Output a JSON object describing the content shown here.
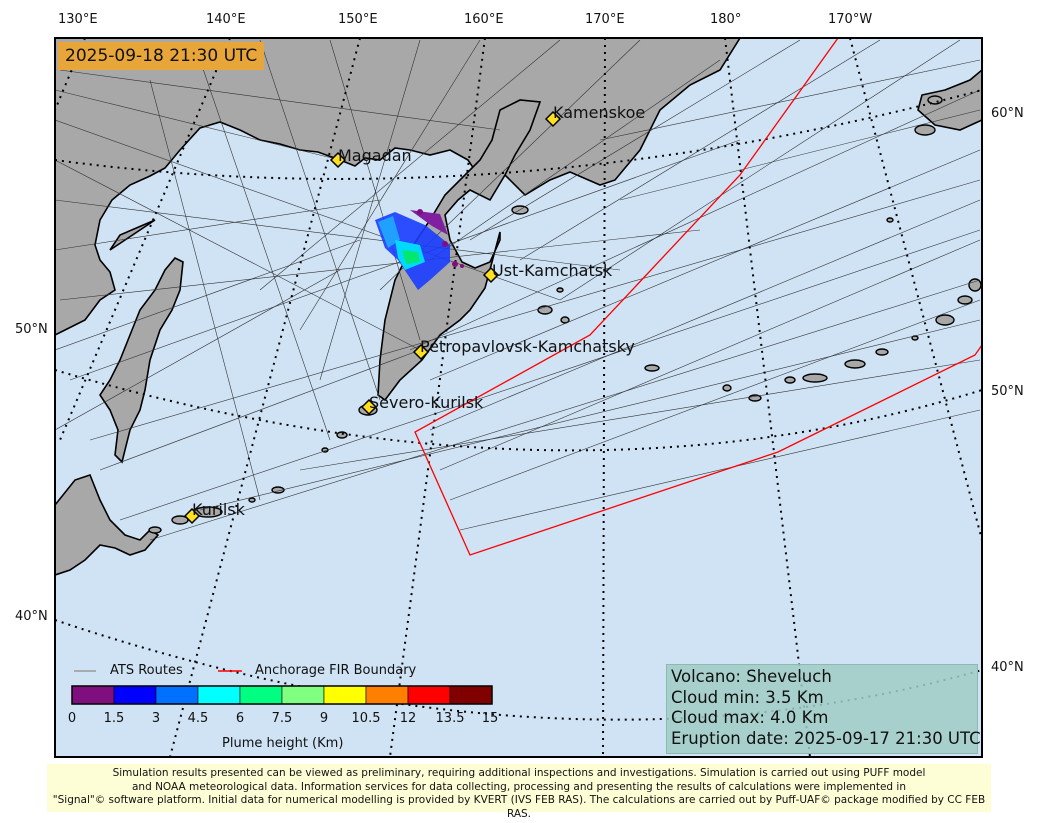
{
  "timestamp": "2025-09-18 21:30 UTC",
  "lon_labels": [
    "130°E",
    "140°E",
    "150°E",
    "160°E",
    "170°E",
    "180°",
    "170°W"
  ],
  "lat_labels_left": [
    "50°N",
    "40°N"
  ],
  "lat_labels_right": [
    "60°N",
    "50°N",
    "40°N"
  ],
  "cities": [
    "Kamenskoe",
    "Magadan",
    "Ust-Kamchatsk",
    "Petropavlovsk-Kamchatsky",
    "Severo-Kurilsk",
    "Kurilsk"
  ],
  "legend": {
    "ats_routes": "ATS Routes",
    "fir_boundary": "Anchorage FIR Boundary"
  },
  "colorbar": {
    "title": "Plume height (Km)",
    "ticks": [
      "0",
      "1.5",
      "3",
      "4.5",
      "6",
      "7.5",
      "9",
      "10.5",
      "12",
      "13.5",
      "15"
    ],
    "colors": [
      "#7f0f7f",
      "#0000ff",
      "#0070ff",
      "#00ffff",
      "#00ff80",
      "#80ff80",
      "#ffff00",
      "#ff8000",
      "#ff0000",
      "#800000"
    ]
  },
  "info": {
    "volcano": "Volcano: Sheveluch",
    "cloud_min": "Cloud min: 3.5 Km",
    "cloud_max": "Cloud max: 4.0 Km",
    "eruption_date": "Eruption date: 2025-09-17 21:30 UTC"
  },
  "disclaimer": {
    "line1": "Simulation results presented can be viewed as preliminary, requiring additional inspections and investigations. Simulation is carried out using PUFF model",
    "line2": "and NOAA meteorological data. Information services for data collecting, processing and presenting the results of calculations were implemented in",
    "line3": "\"Signal\"© software platform. Initial data for numerical modelling is provided by KVERT (IVS FEB RAS). The calculations are carried out by Puff-UAF© package modified by CC FEB RAS."
  },
  "colors": {
    "ocean": "#cfe3f5",
    "land": "#a8a8a8",
    "fir": "#ff0000",
    "routes": "#333333",
    "timestamp_bg": "#e7a53a",
    "city_marker": "#ffe020"
  }
}
